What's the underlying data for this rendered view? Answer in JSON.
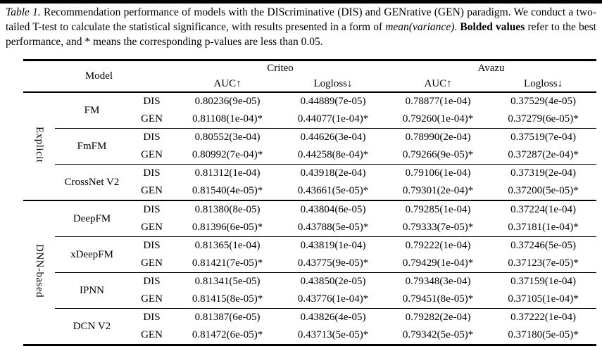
{
  "caption": {
    "segments": [
      {
        "text": "Table 1.",
        "style": "italic"
      },
      {
        "text": " Recommendation performance of models with the DIScriminative (DIS) and GENrative (GEN) paradigm.  We conduct a two-tailed T-test to calculate the statistical significance, with results presented in a form of ",
        "style": "normal"
      },
      {
        "text": "mean(variance)",
        "style": "italic"
      },
      {
        "text": ". ",
        "style": "normal"
      },
      {
        "text": "Bolded values",
        "style": "bold"
      },
      {
        "text": " refer to the best performance, and * means the corresponding p-values are less than 0.05.",
        "style": "normal"
      }
    ]
  },
  "table": {
    "model_header": "Model",
    "dataset_groups": [
      {
        "name": "Criteo",
        "metrics": [
          "AUC↑",
          "Logloss↓"
        ]
      },
      {
        "name": "Avazu",
        "metrics": [
          "AUC↑",
          "Logloss↓"
        ]
      }
    ],
    "sections": [
      {
        "label": "Explicit",
        "models": [
          {
            "name": "FM",
            "rows": [
              {
                "paradigm": "DIS",
                "bold": false,
                "values": [
                  "0.80236(9e-05)",
                  "0.44889(7e-05)",
                  "0.78877(1e-04)",
                  "0.37529(4e-05)"
                ]
              },
              {
                "paradigm": "GEN",
                "bold": true,
                "values": [
                  "0.81108(1e-04)*",
                  "0.44077(1e-04)*",
                  "0.79260(1e-04)*",
                  "0.37279(6e-05)*"
                ]
              }
            ]
          },
          {
            "name": "FmFM",
            "rows": [
              {
                "paradigm": "DIS",
                "bold": false,
                "values": [
                  "0.80552(3e-04)",
                  "0.44626(3e-04)",
                  "0.78990(2e-04)",
                  "0.37519(7e-04)"
                ]
              },
              {
                "paradigm": "GEN",
                "bold": true,
                "values": [
                  "0.80992(7e-04)*",
                  "0.44258(8e-04)*",
                  "0.79266(9e-05)*",
                  "0.37287(2e-04)*"
                ]
              }
            ]
          },
          {
            "name": "CrossNet V2",
            "rows": [
              {
                "paradigm": "DIS",
                "bold": false,
                "values": [
                  "0.81312(1e-04)",
                  "0.43918(2e-04)",
                  "0.79106(1e-04)",
                  "0.37319(2e-04)"
                ]
              },
              {
                "paradigm": "GEN",
                "bold": true,
                "values": [
                  "0.81540(4e-05)*",
                  "0.43661(5e-05)*",
                  "0.79301(2e-04)*",
                  "0.37200(5e-05)*"
                ]
              }
            ]
          }
        ]
      },
      {
        "label": "DNN-based",
        "models": [
          {
            "name": "DeepFM",
            "rows": [
              {
                "paradigm": "DIS",
                "bold": false,
                "values": [
                  "0.81380(8e-05)",
                  "0.43804(6e-05)",
                  "0.79285(1e-04)",
                  "0.37224(1e-04)"
                ]
              },
              {
                "paradigm": "GEN",
                "bold": true,
                "values": [
                  "0.81396(6e-05)*",
                  "0.43788(5e-05)*",
                  "0.79333(7e-05)*",
                  "0.37181(1e-04)*"
                ]
              }
            ]
          },
          {
            "name": "xDeepFM",
            "rows": [
              {
                "paradigm": "DIS",
                "bold": false,
                "values": [
                  "0.81365(1e-04)",
                  "0.43819(1e-04)",
                  "0.79222(1e-04)",
                  "0.37246(5e-05)"
                ]
              },
              {
                "paradigm": "GEN",
                "bold": true,
                "values": [
                  "0.81421(7e-05)*",
                  "0.43775(9e-05)*",
                  "0.79429(1e-04)*",
                  "0.37123(7e-05)*"
                ]
              }
            ]
          },
          {
            "name": "IPNN",
            "rows": [
              {
                "paradigm": "DIS",
                "bold": false,
                "values": [
                  "0.81341(5e-05)",
                  "0.43850(2e-05)",
                  "0.79348(3e-04)",
                  "0.37159(1e-04)"
                ]
              },
              {
                "paradigm": "GEN",
                "bold": true,
                "values": [
                  "0.81415(8e-05)*",
                  "0.43776(1e-04)*",
                  "0.79451(8e-05)*",
                  "0.37105(1e-04)*"
                ]
              }
            ]
          },
          {
            "name": "DCN V2",
            "rows": [
              {
                "paradigm": "DIS",
                "bold": false,
                "values": [
                  "0.81387(6e-05)",
                  "0.43826(4e-05)",
                  "0.79282(2e-04)",
                  "0.37222(1e-04)"
                ]
              },
              {
                "paradigm": "GEN",
                "bold": true,
                "values": [
                  "0.81472(6e-05)*",
                  "0.43713(5e-05)*",
                  "0.79342(5e-05)*",
                  "0.37180(5e-05)*"
                ]
              }
            ]
          }
        ]
      }
    ]
  }
}
